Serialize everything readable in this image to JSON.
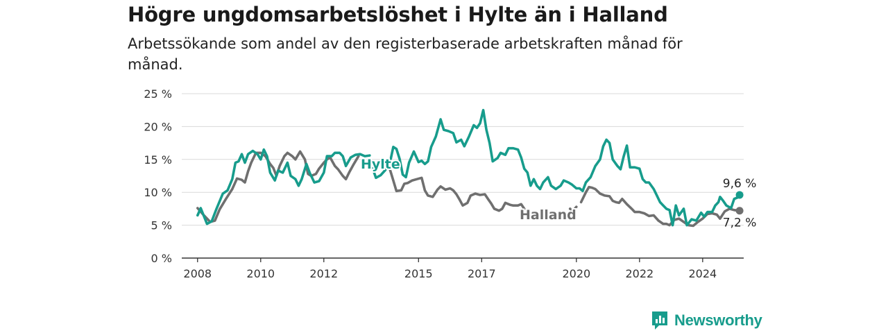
{
  "header": {
    "title": "Högre ungdomsarbetslöshet i Hylte än i Halland",
    "subtitle": "Arbetssökande som andel av den registerbaserade arbetskraften månad för månad."
  },
  "brand": {
    "name": "Newsworthy",
    "color": "#179c8c"
  },
  "chart_data": {
    "type": "line",
    "xlim": [
      2007.5,
      2025.3
    ],
    "ylim": [
      0,
      25
    ],
    "y_ticks": [
      {
        "value": 0,
        "label": "0 %"
      },
      {
        "value": 5,
        "label": "5 %"
      },
      {
        "value": 10,
        "label": "10 %"
      },
      {
        "value": 15,
        "label": "15 %"
      },
      {
        "value": 20,
        "label": "20 %"
      },
      {
        "value": 25,
        "label": "25 %"
      }
    ],
    "x_ticks": [
      {
        "value": 2008,
        "label": "2008"
      },
      {
        "value": 2010,
        "label": "2010"
      },
      {
        "value": 2012,
        "label": "2012"
      },
      {
        "value": 2015,
        "label": "2015"
      },
      {
        "value": 2017,
        "label": "2017"
      },
      {
        "value": 2020,
        "label": "2020"
      },
      {
        "value": 2022,
        "label": "2022"
      },
      {
        "value": 2024,
        "label": "2024"
      }
    ],
    "grid": "horizontal",
    "series": [
      {
        "name": "Hylte",
        "color": "#179c8c",
        "end_label": "9,6 %",
        "points": [
          [
            2008.0,
            6.5
          ],
          [
            2008.1,
            7.6
          ],
          [
            2008.3,
            5.2
          ],
          [
            2008.45,
            5.6
          ],
          [
            2008.6,
            7.5
          ],
          [
            2008.8,
            9.8
          ],
          [
            2008.95,
            10.3
          ],
          [
            2009.1,
            12.0
          ],
          [
            2009.2,
            14.5
          ],
          [
            2009.3,
            14.7
          ],
          [
            2009.4,
            15.8
          ],
          [
            2009.5,
            14.5
          ],
          [
            2009.6,
            15.8
          ],
          [
            2009.75,
            16.3
          ],
          [
            2009.9,
            15.8
          ],
          [
            2010.0,
            15.0
          ],
          [
            2010.1,
            16.5
          ],
          [
            2010.2,
            15.5
          ],
          [
            2010.3,
            13.0
          ],
          [
            2010.45,
            11.8
          ],
          [
            2010.55,
            13.3
          ],
          [
            2010.7,
            13.0
          ],
          [
            2010.85,
            14.5
          ],
          [
            2010.95,
            12.5
          ],
          [
            2011.1,
            12.0
          ],
          [
            2011.2,
            11.0
          ],
          [
            2011.3,
            12.0
          ],
          [
            2011.45,
            14.3
          ],
          [
            2011.55,
            13.0
          ],
          [
            2011.7,
            11.5
          ],
          [
            2011.85,
            11.7
          ],
          [
            2012.0,
            13.0
          ],
          [
            2012.1,
            15.5
          ],
          [
            2012.25,
            15.5
          ],
          [
            2012.35,
            16.0
          ],
          [
            2012.5,
            16.0
          ],
          [
            2012.6,
            15.5
          ],
          [
            2012.7,
            14.0
          ],
          [
            2012.85,
            15.3
          ],
          [
            2013.0,
            15.7
          ],
          [
            2013.15,
            15.8
          ],
          [
            2013.3,
            15.5
          ],
          [
            2013.45,
            15.6
          ]
        ],
        "points_b": [
          [
            2013.55,
            13.6
          ],
          [
            2013.65,
            12.2
          ],
          [
            2013.8,
            12.6
          ],
          [
            2013.95,
            13.4
          ],
          [
            2014.1,
            14.6
          ],
          [
            2014.2,
            16.9
          ],
          [
            2014.3,
            16.6
          ],
          [
            2014.4,
            15.1
          ],
          [
            2014.5,
            12.7
          ],
          [
            2014.6,
            12.3
          ],
          [
            2014.7,
            14.5
          ],
          [
            2014.85,
            16.2
          ],
          [
            2015.0,
            14.6
          ],
          [
            2015.1,
            14.8
          ],
          [
            2015.2,
            14.3
          ],
          [
            2015.3,
            14.7
          ],
          [
            2015.4,
            16.9
          ],
          [
            2015.55,
            18.5
          ],
          [
            2015.7,
            21.1
          ],
          [
            2015.8,
            19.5
          ],
          [
            2015.95,
            19.3
          ],
          [
            2016.1,
            19.0
          ],
          [
            2016.2,
            17.6
          ],
          [
            2016.35,
            18.0
          ],
          [
            2016.45,
            17.0
          ],
          [
            2016.6,
            18.5
          ],
          [
            2016.75,
            20.2
          ],
          [
            2016.85,
            19.8
          ],
          [
            2016.95,
            20.5
          ],
          [
            2017.05,
            22.5
          ],
          [
            2017.15,
            19.5
          ],
          [
            2017.25,
            17.5
          ],
          [
            2017.35,
            14.7
          ],
          [
            2017.5,
            15.2
          ],
          [
            2017.6,
            16.0
          ],
          [
            2017.75,
            15.7
          ],
          [
            2017.85,
            16.7
          ],
          [
            2018.0,
            16.7
          ],
          [
            2018.15,
            16.5
          ],
          [
            2018.25,
            15.3
          ],
          [
            2018.35,
            13.6
          ],
          [
            2018.45,
            13.0
          ],
          [
            2018.55,
            11.0
          ],
          [
            2018.65,
            12.0
          ],
          [
            2018.75,
            11.0
          ],
          [
            2018.85,
            10.5
          ],
          [
            2018.95,
            11.5
          ],
          [
            2019.1,
            12.3
          ],
          [
            2019.2,
            11.0
          ],
          [
            2019.35,
            10.5
          ],
          [
            2019.5,
            11.0
          ],
          [
            2019.6,
            11.8
          ],
          [
            2019.75,
            11.5
          ],
          [
            2019.85,
            11.2
          ],
          [
            2020.0,
            10.6
          ],
          [
            2020.1,
            10.6
          ],
          [
            2020.2,
            10.2
          ],
          [
            2020.3,
            11.5
          ],
          [
            2020.45,
            12.3
          ],
          [
            2020.6,
            14.0
          ],
          [
            2020.75,
            15.0
          ],
          [
            2020.85,
            17.0
          ],
          [
            2020.95,
            18.0
          ],
          [
            2021.05,
            17.5
          ],
          [
            2021.15,
            15.0
          ],
          [
            2021.3,
            14.0
          ],
          [
            2021.4,
            13.5
          ],
          [
            2021.5,
            15.5
          ],
          [
            2021.6,
            17.1
          ],
          [
            2021.7,
            13.8
          ],
          [
            2021.85,
            13.8
          ],
          [
            2022.0,
            13.6
          ],
          [
            2022.1,
            12.0
          ],
          [
            2022.2,
            11.5
          ],
          [
            2022.3,
            11.5
          ],
          [
            2022.45,
            10.5
          ],
          [
            2022.55,
            9.5
          ],
          [
            2022.65,
            8.5
          ],
          [
            2022.75,
            8.0
          ],
          [
            2022.85,
            7.5
          ],
          [
            2022.95,
            7.3
          ],
          [
            2023.05,
            5.0
          ],
          [
            2023.15,
            8.0
          ],
          [
            2023.25,
            6.5
          ],
          [
            2023.4,
            7.5
          ],
          [
            2023.5,
            5.0
          ],
          [
            2023.65,
            5.9
          ],
          [
            2023.8,
            5.7
          ],
          [
            2023.95,
            6.9
          ],
          [
            2024.05,
            6.3
          ],
          [
            2024.15,
            7.0
          ],
          [
            2024.3,
            7.0
          ],
          [
            2024.4,
            8.0
          ],
          [
            2024.5,
            8.5
          ],
          [
            2024.55,
            9.3
          ],
          [
            2024.65,
            8.7
          ],
          [
            2024.75,
            8.0
          ],
          [
            2024.9,
            7.6
          ],
          [
            2025.0,
            9.0
          ],
          [
            2025.1,
            9.2
          ],
          [
            2025.17,
            9.6
          ]
        ]
      },
      {
        "name": "Halland",
        "color": "#6f6f6f",
        "end_label": "7,2 %",
        "points": [
          [
            2008.0,
            7.6
          ],
          [
            2008.2,
            6.5
          ],
          [
            2008.4,
            5.5
          ],
          [
            2008.55,
            5.7
          ],
          [
            2008.7,
            7.4
          ],
          [
            2008.9,
            9.0
          ],
          [
            2009.1,
            10.5
          ],
          [
            2009.25,
            12.1
          ],
          [
            2009.4,
            11.9
          ],
          [
            2009.5,
            11.5
          ],
          [
            2009.6,
            13.2
          ],
          [
            2009.7,
            14.5
          ],
          [
            2009.85,
            16.0
          ],
          [
            2010.0,
            16.0
          ],
          [
            2010.15,
            15.5
          ],
          [
            2010.3,
            14.3
          ],
          [
            2010.4,
            13.7
          ],
          [
            2010.5,
            12.5
          ],
          [
            2010.6,
            14.0
          ],
          [
            2010.75,
            15.5
          ],
          [
            2010.85,
            16.0
          ],
          [
            2011.0,
            15.5
          ],
          [
            2011.1,
            15.0
          ],
          [
            2011.25,
            16.2
          ],
          [
            2011.4,
            15.0
          ],
          [
            2011.5,
            12.8
          ],
          [
            2011.6,
            12.5
          ],
          [
            2011.75,
            12.8
          ],
          [
            2011.85,
            13.6
          ],
          [
            2012.0,
            14.5
          ],
          [
            2012.1,
            15.0
          ],
          [
            2012.2,
            15.3
          ],
          [
            2012.35,
            14.0
          ],
          [
            2012.45,
            13.5
          ],
          [
            2012.6,
            12.5
          ],
          [
            2012.7,
            12.0
          ],
          [
            2012.8,
            13.0
          ],
          [
            2012.95,
            14.3
          ],
          [
            2013.1,
            15.5
          ]
        ],
        "points_b": [
          [
            2013.95,
            14.6
          ],
          [
            2014.1,
            13.4
          ],
          [
            2014.2,
            11.8
          ],
          [
            2014.3,
            10.2
          ],
          [
            2014.45,
            10.3
          ],
          [
            2014.55,
            11.3
          ],
          [
            2014.65,
            11.4
          ],
          [
            2014.8,
            11.8
          ],
          [
            2014.95,
            12.0
          ],
          [
            2015.1,
            12.2
          ],
          [
            2015.2,
            10.3
          ],
          [
            2015.3,
            9.5
          ],
          [
            2015.45,
            9.3
          ],
          [
            2015.6,
            10.4
          ],
          [
            2015.7,
            10.9
          ],
          [
            2015.85,
            10.4
          ],
          [
            2016.0,
            10.6
          ],
          [
            2016.1,
            10.3
          ],
          [
            2016.2,
            9.7
          ],
          [
            2016.3,
            8.9
          ],
          [
            2016.4,
            8.0
          ],
          [
            2016.55,
            8.4
          ],
          [
            2016.65,
            9.5
          ],
          [
            2016.8,
            9.8
          ],
          [
            2016.95,
            9.6
          ],
          [
            2017.1,
            9.7
          ],
          [
            2017.2,
            9.0
          ],
          [
            2017.3,
            8.3
          ],
          [
            2017.4,
            7.5
          ],
          [
            2017.55,
            7.2
          ],
          [
            2017.65,
            7.5
          ],
          [
            2017.75,
            8.4
          ],
          [
            2017.9,
            8.1
          ],
          [
            2018.0,
            8.0
          ],
          [
            2018.15,
            8.0
          ],
          [
            2018.25,
            8.2
          ],
          [
            2018.35,
            7.5
          ]
        ],
        "points_c": [
          [
            2019.8,
            7.5
          ],
          [
            2019.9,
            7.2
          ],
          [
            2020.0,
            7.8
          ]
        ],
        "points_d": [
          [
            2020.15,
            8.5
          ],
          [
            2020.3,
            10.0
          ],
          [
            2020.4,
            10.8
          ],
          [
            2020.5,
            10.7
          ],
          [
            2020.6,
            10.5
          ],
          [
            2020.75,
            9.8
          ],
          [
            2020.9,
            9.5
          ],
          [
            2021.05,
            9.4
          ],
          [
            2021.15,
            8.7
          ],
          [
            2021.25,
            8.5
          ],
          [
            2021.35,
            8.4
          ],
          [
            2021.45,
            9.0
          ],
          [
            2021.6,
            8.2
          ],
          [
            2021.75,
            7.5
          ],
          [
            2021.85,
            7.0
          ],
          [
            2022.0,
            7.0
          ],
          [
            2022.15,
            6.8
          ],
          [
            2022.3,
            6.4
          ],
          [
            2022.45,
            6.5
          ],
          [
            2022.6,
            5.7
          ],
          [
            2022.75,
            5.2
          ],
          [
            2022.85,
            5.2
          ],
          [
            2022.95,
            5.0
          ],
          [
            2023.1,
            5.8
          ],
          [
            2023.25,
            6.0
          ],
          [
            2023.4,
            5.5
          ],
          [
            2023.55,
            5.0
          ],
          [
            2023.7,
            4.9
          ],
          [
            2023.85,
            5.5
          ],
          [
            2024.0,
            6.0
          ],
          [
            2024.15,
            6.7
          ],
          [
            2024.3,
            6.8
          ],
          [
            2024.45,
            6.6
          ],
          [
            2024.55,
            6.0
          ],
          [
            2024.7,
            7.1
          ],
          [
            2024.85,
            7.5
          ],
          [
            2025.0,
            7.3
          ],
          [
            2025.17,
            7.2
          ]
        ]
      }
    ],
    "annotations": [
      {
        "text": "Hylte",
        "series": "Hylte"
      },
      {
        "text": "Halland",
        "series": "Halland"
      }
    ]
  }
}
